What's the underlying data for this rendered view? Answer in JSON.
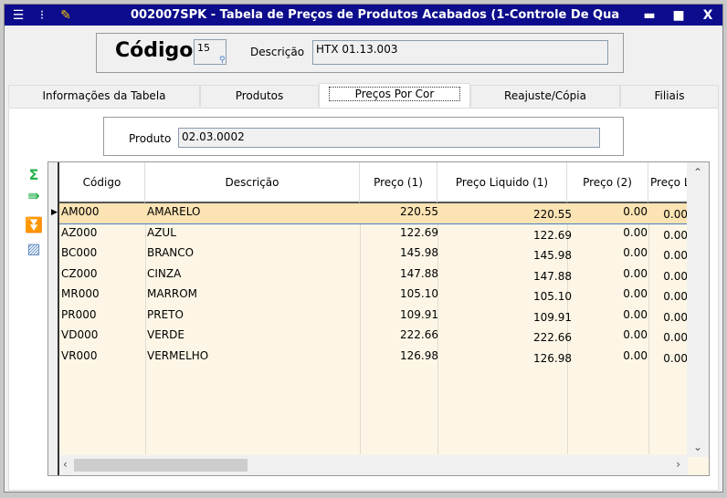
{
  "window": {
    "title": "002007SPK - Tabela de Preços de Produtos Acabados (1-Controle De Qua",
    "minimize": "▬",
    "maximize": "■",
    "close": "X"
  },
  "header": {
    "codigo_label": "Código",
    "codigo_value": "15",
    "descricao_label": "Descrição",
    "descricao_value": "HTX 01.13.003"
  },
  "tabs": [
    {
      "label": "Informações da Tabela"
    },
    {
      "label": "Produtos"
    },
    {
      "label": "Preços Por Cor",
      "active": true
    },
    {
      "label": "Reajuste/Cópia"
    },
    {
      "label": "Filiais"
    }
  ],
  "produto": {
    "label": "Produto",
    "value": "02.03.0002"
  },
  "grid": {
    "columns": [
      "Código",
      "Descrição",
      "Preço (1)",
      "Preço Liquido (1)",
      "Preço (2)",
      "Preço L"
    ],
    "rows": [
      [
        "AM000",
        "AMARELO",
        "220.55",
        "220.55",
        "0.00",
        "0.00"
      ],
      [
        "AZ000",
        "AZUL",
        "122.69",
        "122.69",
        "0.00",
        "0.00"
      ],
      [
        "BC000",
        "BRANCO",
        "145.98",
        "145.98",
        "0.00",
        "0.00"
      ],
      [
        "CZ000",
        "CINZA",
        "147.88",
        "147.88",
        "0.00",
        "0.00"
      ],
      [
        "MR000",
        "MARROM",
        "105.10",
        "105.10",
        "0.00",
        "0.00"
      ],
      [
        "PR000",
        "PRETO",
        "109.91",
        "109.91",
        "0.00",
        "0.00"
      ],
      [
        "VD000",
        "VERDE",
        "222.66",
        "222.66",
        "0.00",
        "0.00"
      ],
      [
        "VR000",
        "VERMELHO",
        "126.98",
        "126.98",
        "0.00",
        "0.00"
      ]
    ],
    "selected_row": 0
  },
  "colors": {
    "titlebar": "#0c0c8c",
    "row_bg": "#fdf6e6",
    "selected_row": "#fbe3b4"
  }
}
